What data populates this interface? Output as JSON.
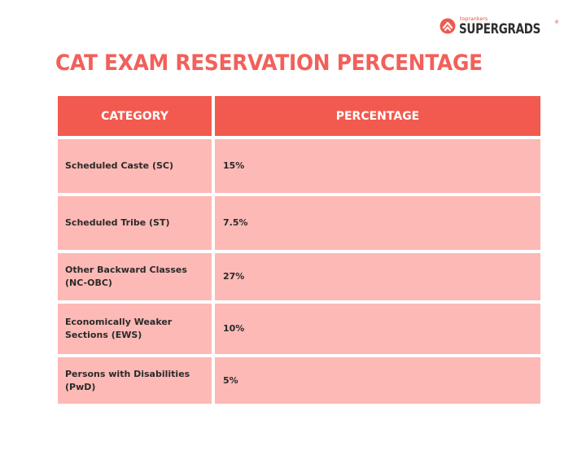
{
  "brand": {
    "small_text": "toprankers",
    "name": "SUPERGRADS",
    "registered_mark": "®"
  },
  "title": "CAT EXAM RESERVATION PERCENTAGE",
  "table": {
    "headers": [
      "CATEGORY",
      "PERCENTAGE"
    ],
    "rows": [
      {
        "category": "Scheduled Caste (SC)",
        "percentage": "15%"
      },
      {
        "category": "Scheduled Tribe (ST)",
        "percentage": "7.5%"
      },
      {
        "category": "Other Backward Classes (NC-OBC)",
        "percentage": "27%"
      },
      {
        "category": "Economically Weaker Sections (EWS)",
        "percentage": "10%"
      },
      {
        "category": "Persons with Disabilities (PwD)",
        "percentage": "5%"
      }
    ]
  },
  "colors": {
    "accent": "#f2605a",
    "header_bg": "#f25a4f",
    "row_bg": "#fdb9b5"
  }
}
